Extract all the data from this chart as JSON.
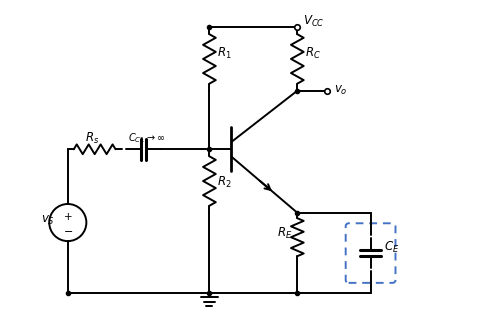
{
  "bg_color": "#ffffff",
  "line_color": "#000000",
  "dashed_color": "#4472c4",
  "fig_width": 4.97,
  "fig_height": 3.23,
  "dpi": 100
}
